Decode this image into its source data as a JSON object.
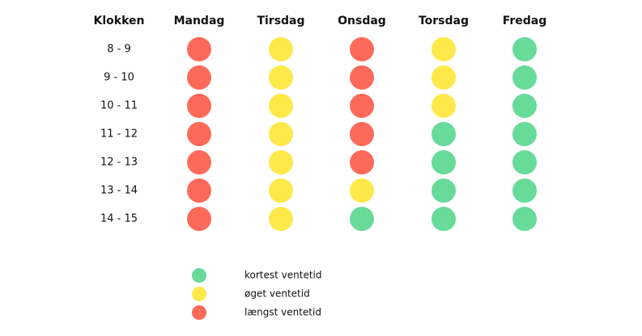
{
  "table": {
    "header": [
      "Klokken",
      "Mandag",
      "Tirsdag",
      "Onsdag",
      "Torsdag",
      "Fredag"
    ],
    "rows": [
      {
        "time": "8 - 9",
        "cells": [
          "#fe6a5a",
          "#ffe94a",
          "#fe6a5a",
          "#ffe94a",
          "#68da9a"
        ]
      },
      {
        "time": "9 - 10",
        "cells": [
          "#fe6a5a",
          "#ffe94a",
          "#fe6a5a",
          "#ffe94a",
          "#68da9a"
        ]
      },
      {
        "time": "10 - 11",
        "cells": [
          "#fe6a5a",
          "#ffe94a",
          "#fe6a5a",
          "#ffe94a",
          "#68da9a"
        ]
      },
      {
        "time": "11 - 12",
        "cells": [
          "#fe6a5a",
          "#ffe94a",
          "#fe6a5a",
          "#68da9a",
          "#68da9a"
        ]
      },
      {
        "time": "12 - 13",
        "cells": [
          "#fe6a5a",
          "#ffe94a",
          "#fe6a5a",
          "#68da9a",
          "#68da9a"
        ]
      },
      {
        "time": "13 - 14",
        "cells": [
          "#fe6a5a",
          "#ffe94a",
          "#ffe94a",
          "#68da9a",
          "#68da9a"
        ]
      },
      {
        "time": "14 - 15",
        "cells": [
          "#fe6a5a",
          "#ffe94a",
          "#68da9a",
          "#68da9a",
          "#68da9a"
        ]
      }
    ]
  },
  "legend": [
    {
      "color": "#68da9a",
      "label": "kortest ventetid"
    },
    {
      "color": "#ffe94a",
      "label": "øget ventetid"
    },
    {
      "color": "#fe6a5a",
      "label": "længst ventetid"
    }
  ]
}
